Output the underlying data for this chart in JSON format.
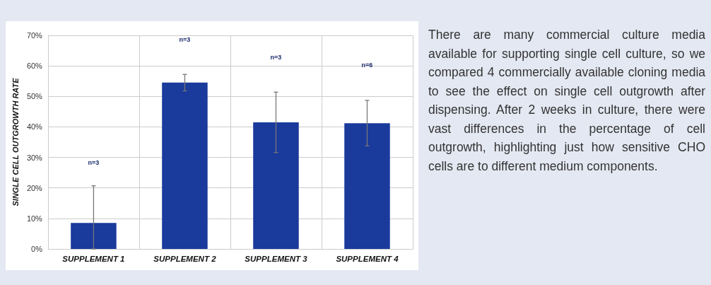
{
  "chart_data": {
    "type": "bar",
    "ylabel": "SINGLE CELL OUTGROWTH RATE",
    "categories": [
      "SUPPLEMENT 1",
      "SUPPLEMENT 2",
      "SUPPLEMENT 3",
      "SUPPLEMENT 4"
    ],
    "values": [
      8.5,
      54.5,
      41.5,
      41.2
    ],
    "errors": [
      [
        0,
        20.7
      ],
      [
        51.8,
        57.2
      ],
      [
        31.6,
        51.4
      ],
      [
        33.8,
        48.7
      ]
    ],
    "color": "#1a3a9c",
    "ylim": [
      0,
      70
    ],
    "yticks": [
      {
        "value": 0,
        "label": "0%"
      },
      {
        "value": 10,
        "label": "10%"
      },
      {
        "value": 20,
        "label": "20%"
      },
      {
        "value": 30,
        "label": "30%"
      },
      {
        "value": 40,
        "label": "40%"
      },
      {
        "value": 50,
        "label": "50%"
      },
      {
        "value": 60,
        "label": "60%"
      },
      {
        "value": 70,
        "label": "70%"
      }
    ],
    "grid": true,
    "annotations": [
      "n=3",
      "n=3",
      "n=3",
      "n=6",
      "There are many commercial culture media available for supporting single cell culture, so we compared 4 commercially available cloning media to see the effect on single cell outgrowth after dispensing. After 2 weeks in culture, there were vast differences in the percentage of cell outgrowth, highlighting just how sensitive CHO cells are to different medium components."
    ]
  }
}
